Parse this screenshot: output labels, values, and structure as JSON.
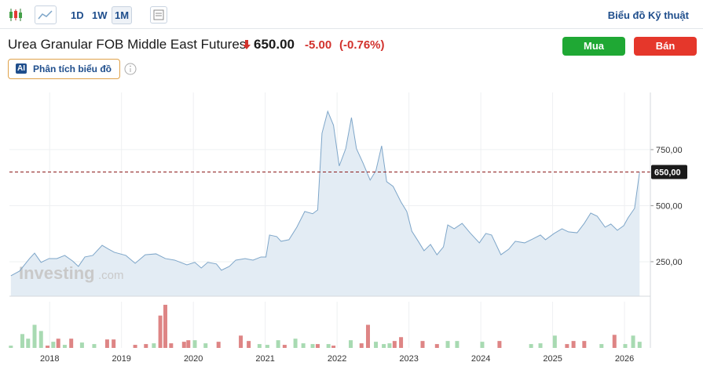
{
  "toolbar": {
    "range_buttons": [
      "1D",
      "1W",
      "1M"
    ],
    "technical_link": "Biểu đồ Kỹ thuật"
  },
  "header": {
    "title": "Urea Granular FOB Middle East Futures",
    "price": "650.00",
    "change": "-5.00",
    "change_percent": "(-0.76%)",
    "buy": "Mua",
    "sell": "Bán",
    "ai_badge": "AI",
    "ai_button": "Phân tích biểu đồ"
  },
  "watermark": {
    "brand": "Investing",
    "suffix": ".com"
  },
  "chart_data": [
    {
      "type": "area",
      "color": "#7ea6c9",
      "fill": "#e3ecf4",
      "x": [
        2017.46,
        2017.58,
        2017.72,
        2017.79,
        2017.88,
        2017.99,
        2018.1,
        2018.21,
        2018.32,
        2018.4,
        2018.49,
        2018.6,
        2018.73,
        2018.82,
        2018.9,
        2019.06,
        2019.19,
        2019.33,
        2019.48,
        2019.61,
        2019.74,
        2019.91,
        2020.02,
        2020.11,
        2020.2,
        2020.32,
        2020.39,
        2020.5,
        2020.59,
        2020.72,
        2020.83,
        2020.94,
        2021.01,
        2021.06,
        2021.16,
        2021.22,
        2021.33,
        2021.44,
        2021.55,
        2021.66,
        2021.73,
        2021.79,
        2021.87,
        2021.95,
        2022.03,
        2022.12,
        2022.2,
        2022.27,
        2022.36,
        2022.46,
        2022.54,
        2022.62,
        2022.69,
        2022.78,
        2022.89,
        2022.97,
        2023.04,
        2023.13,
        2023.21,
        2023.3,
        2023.39,
        2023.48,
        2023.54,
        2023.63,
        2023.74,
        2023.85,
        2023.98,
        2024.07,
        2024.15,
        2024.28,
        2024.39,
        2024.48,
        2024.61,
        2024.72,
        2024.83,
        2024.9,
        2025.02,
        2025.13,
        2025.22,
        2025.34,
        2025.44,
        2025.53,
        2025.62,
        2025.73,
        2025.81,
        2025.9,
        2025.99,
        2026.05,
        2026.14,
        2026.21
      ],
      "y": [
        187,
        208,
        264,
        288,
        247,
        264,
        264,
        278,
        253,
        229,
        271,
        278,
        323,
        306,
        292,
        278,
        243,
        281,
        285,
        264,
        257,
        236,
        247,
        222,
        247,
        240,
        212,
        229,
        257,
        264,
        257,
        271,
        271,
        369,
        362,
        341,
        348,
        404,
        474,
        464,
        481,
        823,
        921,
        859,
        677,
        754,
        893,
        754,
        691,
        614,
        656,
        767,
        607,
        586,
        516,
        474,
        386,
        341,
        299,
        327,
        281,
        316,
        414,
        397,
        421,
        379,
        334,
        376,
        369,
        281,
        306,
        341,
        334,
        351,
        369,
        348,
        376,
        397,
        383,
        379,
        421,
        467,
        453,
        404,
        418,
        390,
        411,
        446,
        488,
        650
      ],
      "xlim": [
        2017.44,
        2026.36
      ],
      "ylim": [
        96,
        1005
      ],
      "xticks": [
        2018,
        2019,
        2020,
        2021,
        2022,
        2023,
        2024,
        2025,
        2026
      ],
      "yticks": [
        {
          "value": 250,
          "label": "250,00"
        },
        {
          "value": 500,
          "label": "500,00"
        },
        {
          "value": 750,
          "label": "750,00"
        }
      ],
      "last_price": {
        "value": 650,
        "label": "650,00"
      },
      "last_price_color": "#8b1a1a",
      "grid": true
    },
    {
      "type": "bar",
      "ylim": [
        0,
        60
      ],
      "x": [
        2017.46,
        2017.62,
        2017.7,
        2017.79,
        2017.88,
        2017.97,
        2018.05,
        2018.12,
        2018.21,
        2018.3,
        2018.45,
        2018.62,
        2018.8,
        2018.89,
        2019.19,
        2019.34,
        2019.45,
        2019.54,
        2019.61,
        2019.69,
        2019.87,
        2019.93,
        2020.02,
        2020.17,
        2020.35,
        2020.66,
        2020.77,
        2020.92,
        2021.03,
        2021.18,
        2021.27,
        2021.42,
        2021.53,
        2021.66,
        2021.73,
        2021.88,
        2021.95,
        2022.19,
        2022.34,
        2022.43,
        2022.54,
        2022.65,
        2022.73,
        2022.8,
        2022.89,
        2023.19,
        2023.39,
        2023.54,
        2023.67,
        2024.02,
        2024.26,
        2024.7,
        2024.83,
        2025.03,
        2025.2,
        2025.29,
        2025.44,
        2025.68,
        2025.86,
        2026.01,
        2026.12,
        2026.21
      ],
      "values": [
        3,
        18,
        12,
        30,
        22,
        3,
        8,
        12,
        4,
        12,
        7,
        5,
        11,
        11,
        4,
        5,
        6,
        42,
        56,
        6,
        8,
        10,
        10,
        6,
        8,
        16,
        9,
        5,
        4,
        10,
        4,
        12,
        6,
        5,
        5,
        5,
        3,
        10,
        6,
        30,
        8,
        5,
        6,
        9,
        14,
        9,
        5,
        9,
        9,
        8,
        9,
        5,
        6,
        16,
        5,
        9,
        9,
        5,
        17,
        5,
        16,
        8
      ],
      "colors": [
        "#a8dab2",
        "#a8dab2",
        "#a8dab2",
        "#a8dab2",
        "#a8dab2",
        "#de8585",
        "#a8dab2",
        "#de8585",
        "#a8dab2",
        "#de8585",
        "#a8dab2",
        "#a8dab2",
        "#de8585",
        "#de8585",
        "#de8585",
        "#de8585",
        "#a8dab2",
        "#de8585",
        "#de8585",
        "#de8585",
        "#de8585",
        "#de8585",
        "#a8dab2",
        "#a8dab2",
        "#de8585",
        "#de8585",
        "#de8585",
        "#a8dab2",
        "#a8dab2",
        "#a8dab2",
        "#de8585",
        "#a8dab2",
        "#a8dab2",
        "#a8dab2",
        "#de8585",
        "#a8dab2",
        "#de8585",
        "#a8dab2",
        "#de8585",
        "#de8585",
        "#a8dab2",
        "#a8dab2",
        "#a8dab2",
        "#de8585",
        "#de8585",
        "#de8585",
        "#de8585",
        "#a8dab2",
        "#a8dab2",
        "#a8dab2",
        "#de8585",
        "#a8dab2",
        "#a8dab2",
        "#a8dab2",
        "#de8585",
        "#de8585",
        "#de8585",
        "#a8dab2",
        "#de8585",
        "#a8dab2",
        "#a8dab2",
        "#a8dab2"
      ]
    }
  ]
}
